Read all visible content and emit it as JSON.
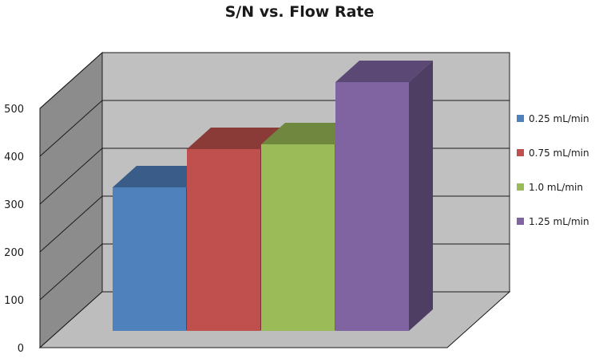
{
  "chart_data": {
    "type": "bar",
    "title": "S/N vs. Flow Rate",
    "xlabel": "",
    "ylabel": "",
    "categories": [
      "0.25 mL/min",
      "0.75 mL/min",
      "1.0 mL/min",
      "1.25 mL/min"
    ],
    "values": [
      300,
      380,
      390,
      520
    ],
    "colors": [
      "#4f81bd",
      "#c0504d",
      "#9bbb59",
      "#8064a2"
    ],
    "ylim": [
      0,
      500
    ],
    "yticks": [
      0,
      100,
      200,
      300,
      400,
      500
    ],
    "grid": true,
    "legend_position": "right",
    "three_d": true
  }
}
